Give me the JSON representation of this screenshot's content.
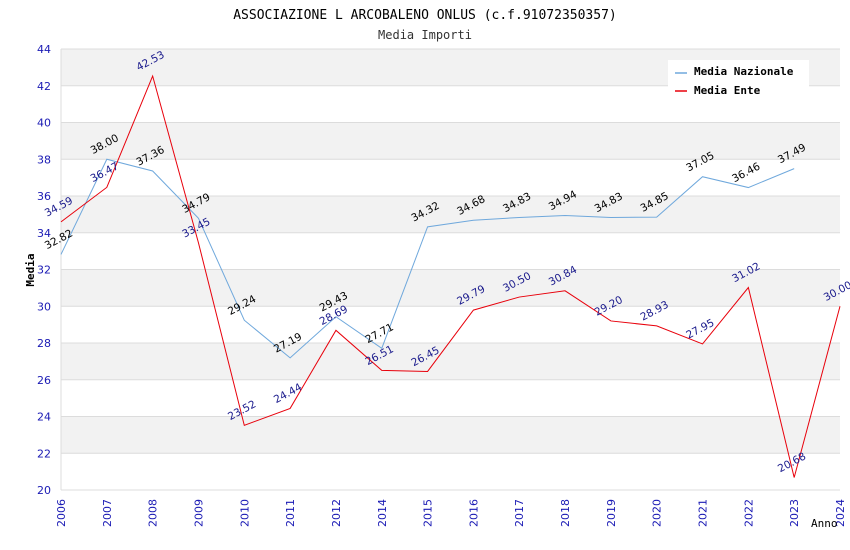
{
  "chart_data": {
    "type": "line",
    "title": "ASSOCIAZIONE L ARCOBALENO ONLUS (c.f.91072350357)",
    "subtitle": "Media Importi",
    "xlabel": "Anno",
    "ylabel": "Media",
    "ylim": [
      20,
      44
    ],
    "yticks": [
      "20",
      "22",
      "24",
      "26",
      "28",
      "30",
      "32",
      "34",
      "36",
      "38",
      "40",
      "42",
      "44"
    ],
    "categories": [
      "2006",
      "2007",
      "2008",
      "2009",
      "2010",
      "2011",
      "2012",
      "2014",
      "2015",
      "2016",
      "2017",
      "2018",
      "2019",
      "2020",
      "2021",
      "2022",
      "2023",
      "2024"
    ],
    "grid": true,
    "legend_position": "top-right",
    "series": [
      {
        "name": "Media Nazionale",
        "color": "#6fa8dc",
        "label_color": "#000000",
        "values": [
          32.82,
          38.0,
          37.36,
          34.79,
          29.24,
          27.19,
          29.43,
          27.71,
          34.32,
          34.68,
          34.83,
          34.94,
          34.83,
          34.85,
          37.05,
          36.46,
          37.49,
          null
        ],
        "labels": [
          "32.82",
          "38.00",
          "37.36",
          "34.79",
          "29.24",
          "27.19",
          "29.43",
          "27.71",
          "34.32",
          "34.68",
          "34.83",
          "34.94",
          "34.83",
          "34.85",
          "37.05",
          "36.46",
          "37.49",
          ""
        ]
      },
      {
        "name": "Media Ente",
        "color": "#e8000b",
        "label_color": "#1a1a8c",
        "values": [
          34.59,
          36.47,
          42.53,
          33.45,
          23.52,
          24.44,
          28.69,
          26.51,
          26.45,
          29.79,
          30.5,
          30.84,
          29.2,
          28.93,
          27.95,
          31.02,
          20.68,
          30.0
        ],
        "labels": [
          "34.59",
          "36.47",
          "42.53",
          "33.45",
          "23.52",
          "24.44",
          "28.69",
          "26.51",
          "26.45",
          "29.79",
          "30.50",
          "30.84",
          "29.20",
          "28.93",
          "27.95",
          "31.02",
          "20.68",
          "30.00"
        ]
      }
    ]
  },
  "colors": {
    "band": "#f2f2f2",
    "grid": "#dcdcdc",
    "tick_text": "#1a1ab4",
    "title_text": "#000000",
    "subtitle_text": "#333333"
  }
}
